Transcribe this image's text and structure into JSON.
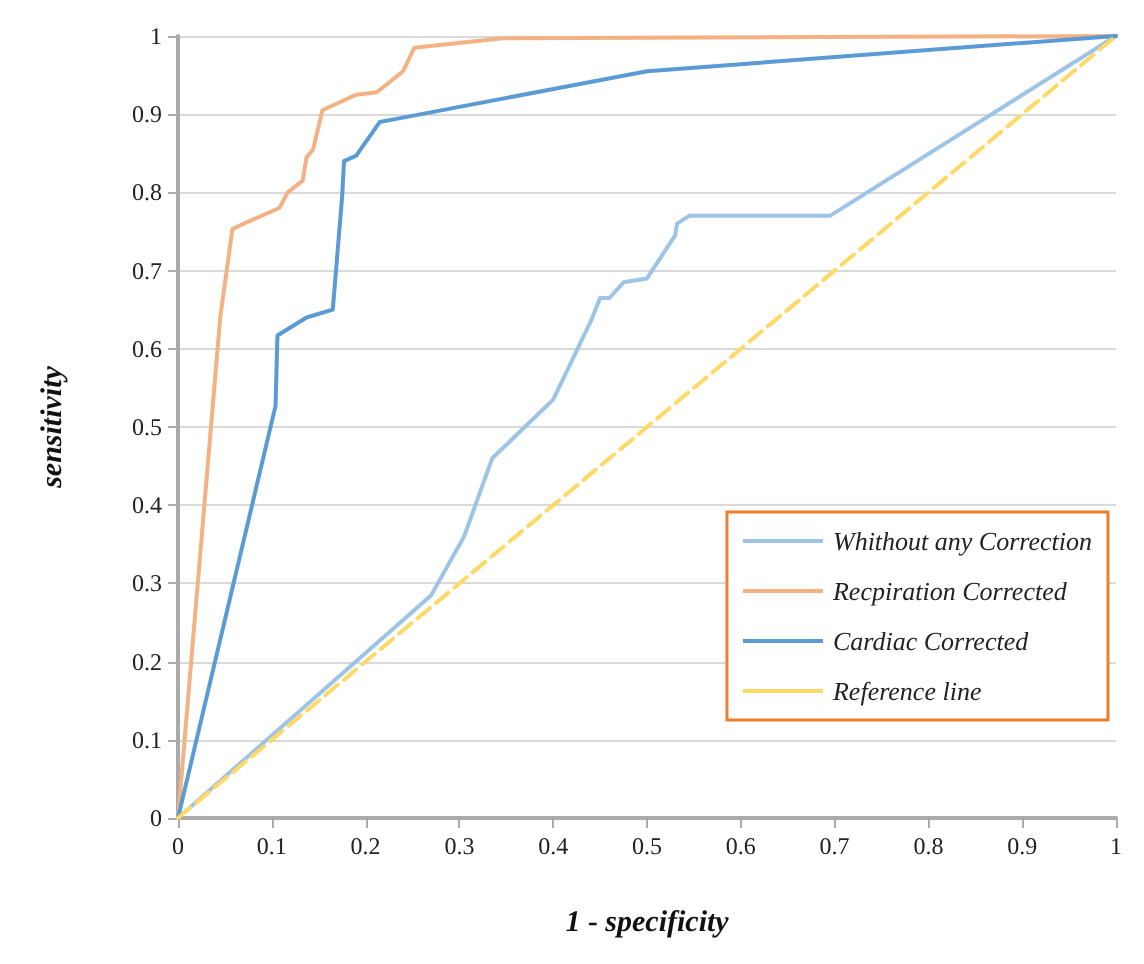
{
  "chart_data": {
    "type": "line",
    "xlabel": "1 - specificity",
    "ylabel": "sensitivity",
    "xlim": [
      0,
      1
    ],
    "ylim": [
      0,
      1
    ],
    "xticks": [
      0,
      0.1,
      0.2,
      0.3,
      0.4,
      0.5,
      0.6,
      0.7,
      0.8,
      0.9,
      1
    ],
    "yticks": [
      0,
      0.1,
      0.2,
      0.3,
      0.4,
      0.5,
      0.6,
      0.7,
      0.8,
      0.9,
      1
    ],
    "grid": "y",
    "legend": "right",
    "marker": "none",
    "series": [
      {
        "name": "Whithout any Correction",
        "color": "#9dc3e6",
        "x": [
          0,
          0.27,
          0.305,
          0.335,
          0.4,
          0.44,
          0.45,
          0.46,
          0.475,
          0.5,
          0.53,
          0.532,
          0.545,
          0.695,
          1
        ],
        "values": [
          0,
          0.285,
          0.36,
          0.46,
          0.535,
          0.635,
          0.665,
          0.665,
          0.685,
          0.69,
          0.745,
          0.76,
          0.77,
          0.77,
          1
        ]
      },
      {
        "name": "Recpiration Corrected",
        "color": "#f4b183",
        "x": [
          0,
          0.045,
          0.058,
          0.07,
          0.108,
          0.117,
          0.133,
          0.137,
          0.144,
          0.154,
          0.19,
          0.212,
          0.24,
          0.252,
          0.346,
          1
        ],
        "values": [
          0,
          0.64,
          0.753,
          0.76,
          0.78,
          0.8,
          0.815,
          0.845,
          0.855,
          0.905,
          0.925,
          0.928,
          0.955,
          0.985,
          0.997,
          1
        ]
      },
      {
        "name": "Cardiac Corrected",
        "color": "#5b9bd5",
        "x": [
          0,
          0.104,
          0.106,
          0.137,
          0.165,
          0.175,
          0.177,
          0.19,
          0.215,
          0.237,
          0.5,
          1
        ],
        "values": [
          0,
          0.527,
          0.617,
          0.64,
          0.65,
          0.795,
          0.84,
          0.847,
          0.89,
          0.895,
          0.955,
          1
        ]
      },
      {
        "name": "Reference line",
        "color": "#ffd966",
        "line_style": "dashed",
        "x": [
          0,
          1
        ],
        "values": [
          0,
          1
        ]
      }
    ]
  }
}
